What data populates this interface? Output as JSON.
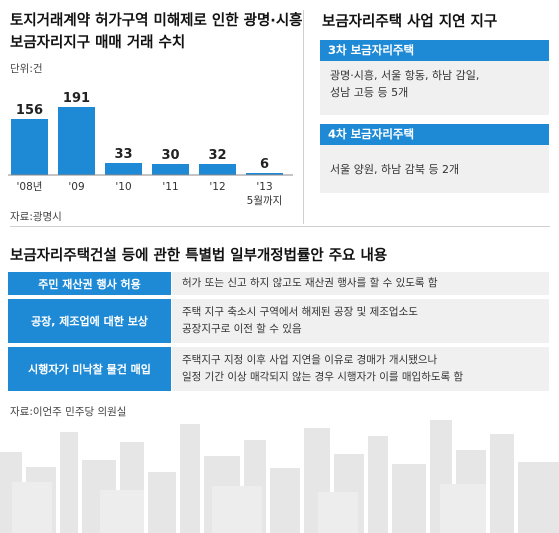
{
  "chart_data": {
    "type": "bar",
    "title": "토지거래계약 허가구역 미해제로 인한 광명·시흥 보금자리지구 매매 거래 수치",
    "unit": "단위:건",
    "categories": [
      "'08년",
      "'09",
      "'10",
      "'11",
      "'12",
      "'13 5월까지"
    ],
    "values": [
      156,
      191,
      33,
      30,
      32,
      6
    ],
    "ylim": [
      0,
      191
    ],
    "source": "자료:광명시",
    "bar_color": "#1e8ad6"
  },
  "delay": {
    "title": "보금자리주택 사업 지연 지구",
    "panels": [
      {
        "header": "3차 보금자리주택",
        "lines": [
          "광명·시흥, 서울 항동, 하남 감일,",
          "성남 고등 등 5개"
        ]
      },
      {
        "header": "4차 보금자리주택",
        "lines": [
          "서울 양원, 하남 감북 등 2개"
        ]
      }
    ]
  },
  "law": {
    "title": "보금자리주택건설 등에 관한 특별법 일부개정법률안 주요 내용",
    "rows": [
      {
        "label": "주민 재산권 행사 허용",
        "lines": [
          "허가 또는 신고 하지 않고도 재산권 행사를 할 수 있도록 함"
        ]
      },
      {
        "label": "공장, 제조업에 대한 보상",
        "lines": [
          "주택 지구 축소시 구역에서 해제된 공장 및 제조업소도",
          "공장지구로 이전 할 수 있음"
        ]
      },
      {
        "label": "시행자가 미낙찰 물건 매입",
        "lines": [
          "주택지구 지정 이후 사업 지연을 이유로 경매가 개시됐으나",
          "일정 기간 이상 매각되지 않는 경우 시행자가 이를 매입하도록 함"
        ]
      }
    ],
    "source": "자료:이언주 민주당 의원실"
  },
  "colors": {
    "accent": "#1e8ad6",
    "panel_bg": "#f0f0f0",
    "skyline": "#e6e6e6"
  }
}
